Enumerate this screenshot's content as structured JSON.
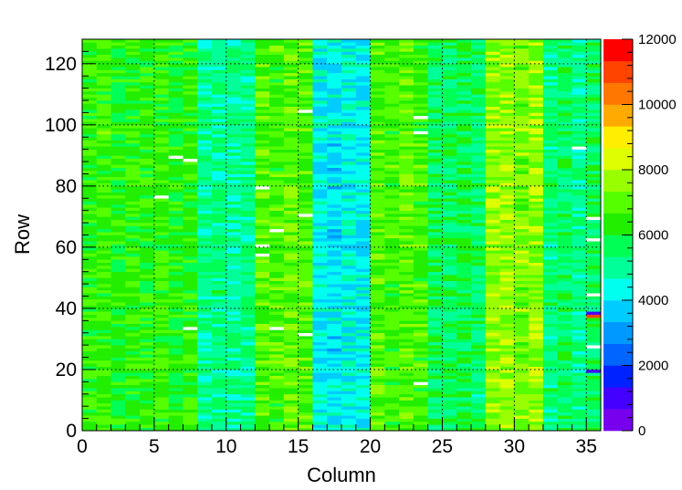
{
  "chart_data": {
    "type": "heatmap",
    "title": "",
    "xlabel": "Column",
    "ylabel": "Row",
    "xlim": [
      0,
      36
    ],
    "ylim": [
      0,
      128
    ],
    "x_ticks": [
      0,
      5,
      10,
      15,
      20,
      25,
      30,
      35
    ],
    "y_ticks": [
      0,
      20,
      40,
      60,
      80,
      100,
      120
    ],
    "grid": true,
    "colorbar": {
      "min": 0,
      "max": 12000,
      "ticks": [
        0,
        2000,
        4000,
        6000,
        8000,
        10000,
        12000
      ],
      "colors": [
        "#7700ee",
        "#4400ff",
        "#0022ff",
        "#0066ff",
        "#0099ff",
        "#00ccff",
        "#00ffee",
        "#00ff99",
        "#00ff55",
        "#22ee00",
        "#55ff00",
        "#99ff00",
        "#ddff00",
        "#ffee00",
        "#ffaa00",
        "#ff7700",
        "#ff4400",
        "#ff0000"
      ]
    },
    "column_baseline_values": [
      6400,
      6600,
      6200,
      6500,
      6300,
      6600,
      6200,
      6400,
      5100,
      5300,
      5000,
      5200,
      6900,
      6700,
      7000,
      6800,
      4200,
      4000,
      4300,
      4100,
      6800,
      6600,
      7000,
      6700,
      5600,
      5500,
      5800,
      5400,
      7500,
      7700,
      7300,
      7600,
      5300,
      5600,
      5200,
      5500
    ],
    "outlier_cells": [
      {
        "col": 5,
        "row": 76,
        "value": 11800
      },
      {
        "col": 6,
        "row": 89,
        "value": 11800
      },
      {
        "col": 7,
        "row": 88,
        "value": 11800
      },
      {
        "col": 7,
        "row": 33,
        "value": 11800
      },
      {
        "col": 12,
        "row": 79,
        "value": 11800
      },
      {
        "col": 12,
        "row": 60,
        "value": 11800
      },
      {
        "col": 12,
        "row": 57,
        "value": 11800
      },
      {
        "col": 13,
        "row": 65,
        "value": 11800
      },
      {
        "col": 13,
        "row": 33,
        "value": 11800
      },
      {
        "col": 15,
        "row": 104,
        "value": 11800
      },
      {
        "col": 15,
        "row": 70,
        "value": 11800
      },
      {
        "col": 15,
        "row": 31,
        "value": 11800
      },
      {
        "col": 23,
        "row": 102,
        "value": 11800
      },
      {
        "col": 23,
        "row": 97,
        "value": 11800
      },
      {
        "col": 23,
        "row": 15,
        "value": 11800
      },
      {
        "col": 34,
        "row": 92,
        "value": 11800
      },
      {
        "col": 35,
        "row": 69,
        "value": 11800
      },
      {
        "col": 35,
        "row": 62,
        "value": 11800
      },
      {
        "col": 35,
        "row": 44,
        "value": 11800
      },
      {
        "col": 35,
        "row": 38,
        "value": 900
      },
      {
        "col": 35,
        "row": 37,
        "value": 11200
      },
      {
        "col": 35,
        "row": 27,
        "value": 11800
      },
      {
        "col": 35,
        "row": 19,
        "value": 1000
      }
    ]
  }
}
